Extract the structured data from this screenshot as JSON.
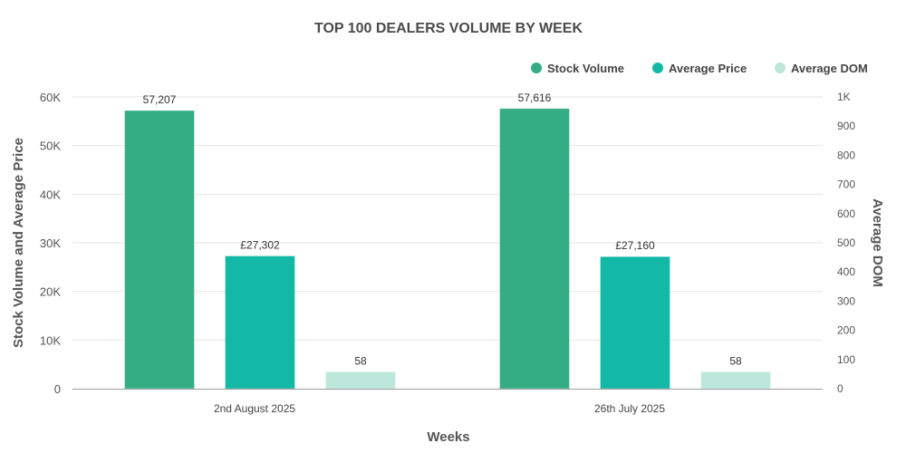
{
  "chart_data": {
    "type": "bar",
    "title": "TOP 100 DEALERS VOLUME BY WEEK",
    "xlabel": "Weeks",
    "ylabel": "Stock Volume and Average Price",
    "y2label": "Average DOM",
    "categories": [
      "2nd August 2025",
      "26th July 2025"
    ],
    "ylim": [
      0,
      60000
    ],
    "y2lim": [
      0,
      1000
    ],
    "y_ticks": [
      0,
      10000,
      20000,
      30000,
      40000,
      50000,
      60000
    ],
    "y_tick_labels": [
      "0",
      "10K",
      "20K",
      "30K",
      "40K",
      "50K",
      "60K"
    ],
    "y2_ticks": [
      0,
      100,
      200,
      300,
      400,
      500,
      600,
      700,
      800,
      900,
      1000
    ],
    "y2_tick_labels": [
      "0",
      "100",
      "200",
      "300",
      "400",
      "500",
      "600",
      "700",
      "800",
      "900",
      "1K"
    ],
    "legend_position": "top-right",
    "grid": true,
    "series": [
      {
        "name": "Stock Volume",
        "axis": "left",
        "color": "#34ad84",
        "values": [
          57207,
          57616
        ],
        "labels": [
          "57,207",
          "57,616"
        ]
      },
      {
        "name": "Average Price",
        "axis": "left",
        "color": "#14b8a6",
        "values": [
          27302,
          27160
        ],
        "labels": [
          "£27,302",
          "£27,160"
        ]
      },
      {
        "name": "Average DOM",
        "axis": "right",
        "color": "#bde7da",
        "values": [
          58,
          58
        ],
        "labels": [
          "58",
          "58"
        ]
      }
    ]
  }
}
